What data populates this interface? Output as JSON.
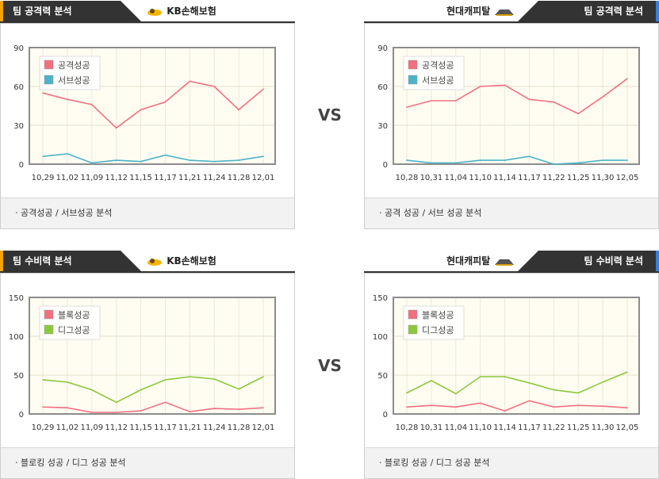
{
  "vs_label": "VS",
  "colors": {
    "red": "#f07080",
    "blue": "#4bb3c8",
    "green": "#8cc83c",
    "tab_left": "#f5a300",
    "tab_right": "#3b7fd9"
  },
  "panels": [
    {
      "id": "attack-left",
      "title": "팀 공격력 분석",
      "team": "KB손해보험",
      "logo": "kb-insurance-logo",
      "footer": "·  공격성공 / 서브성공 분석",
      "chart_data": {
        "type": "line",
        "categories": [
          "10,29",
          "11,02",
          "11,09",
          "11,12",
          "11,15",
          "11,17",
          "11,21",
          "11,24",
          "11,28",
          "12,01"
        ],
        "ylim": [
          0,
          90
        ],
        "yticks": [
          0,
          30,
          60,
          90
        ],
        "legend": "top-left",
        "series": [
          {
            "name": "공격성공",
            "color": "#f07080",
            "values": [
              55,
              50,
              46,
              28,
              42,
              48,
              64,
              60,
              42,
              58
            ]
          },
          {
            "name": "서브성공",
            "color": "#4bb3c8",
            "values": [
              6,
              8,
              1,
              3,
              2,
              7,
              3,
              2,
              3,
              6
            ]
          }
        ]
      }
    },
    {
      "id": "attack-right",
      "title": "팀 공격력 분석",
      "team": "현대캐피탈",
      "logo": "hyundai-capital-logo",
      "footer": "·  공격 성공 / 서브 성공 분석",
      "chart_data": {
        "type": "line",
        "categories": [
          "10,28",
          "10,31",
          "11,04",
          "11,10",
          "11,14",
          "11,17",
          "11,22",
          "11,25",
          "11,30",
          "12,05"
        ],
        "ylim": [
          0,
          90
        ],
        "yticks": [
          0,
          30,
          60,
          90
        ],
        "legend": "top-left",
        "series": [
          {
            "name": "공격성공",
            "color": "#f07080",
            "values": [
              44,
              49,
              49,
              60,
              61,
              50,
              48,
              39,
              52,
              66
            ]
          },
          {
            "name": "서브성공",
            "color": "#4bb3c8",
            "values": [
              3,
              1,
              1,
              3,
              3,
              6,
              0,
              1,
              3,
              3
            ]
          }
        ]
      }
    },
    {
      "id": "defense-left",
      "title": "팀 수비력 분석",
      "team": "KB손해보험",
      "logo": "kb-insurance-logo",
      "footer": "·  블로킹 성공 / 디그 성공 분석",
      "chart_data": {
        "type": "line",
        "categories": [
          "10,29",
          "11,02",
          "11,09",
          "11,12",
          "11,15",
          "11,17",
          "11,21",
          "11,24",
          "11,28",
          "12,01"
        ],
        "ylim": [
          0,
          150
        ],
        "yticks": [
          0,
          50,
          100,
          150
        ],
        "legend": "top-left",
        "series": [
          {
            "name": "블록성공",
            "color": "#f07080",
            "values": [
              9,
              8,
              2,
              2,
              4,
              15,
              3,
              7,
              6,
              8
            ]
          },
          {
            "name": "디그성공",
            "color": "#8cc83c",
            "values": [
              44,
              41,
              31,
              15,
              31,
              44,
              48,
              45,
              32,
              48
            ]
          }
        ]
      }
    },
    {
      "id": "defense-right",
      "title": "팀 수비력 분석",
      "team": "현대캐피탈",
      "logo": "hyundai-capital-logo",
      "footer": "·  블로킹 성공 / 디그 성공 분석",
      "chart_data": {
        "type": "line",
        "categories": [
          "10,28",
          "10,31",
          "11,04",
          "11,10",
          "11,14",
          "11,17",
          "11,22",
          "11,25",
          "11,30",
          "12,05"
        ],
        "ylim": [
          0,
          150
        ],
        "yticks": [
          0,
          50,
          100,
          150
        ],
        "legend": "top-left",
        "series": [
          {
            "name": "블록성공",
            "color": "#f07080",
            "values": [
              9,
              11,
              9,
              14,
              4,
              17,
              9,
              11,
              10,
              8
            ]
          },
          {
            "name": "디그성공",
            "color": "#8cc83c",
            "values": [
              27,
              43,
              26,
              48,
              48,
              40,
              31,
              27,
              41,
              54
            ]
          }
        ]
      }
    }
  ]
}
